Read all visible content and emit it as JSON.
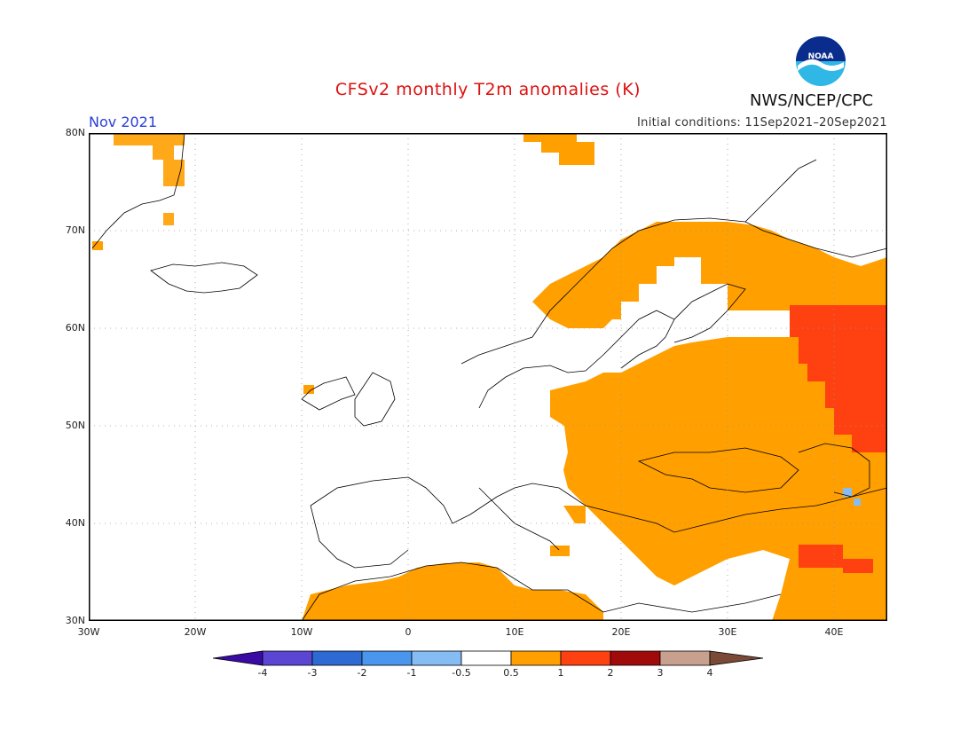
{
  "header": {
    "title": "CFSv2 monthly T2m anomalies (K)",
    "period": "Nov 2021",
    "initial_conditions": "Initial conditions: 11Sep2021–20Sep2021",
    "agency": "NWS/NCEP/CPC",
    "logo_text": "NOAA"
  },
  "map": {
    "lon_range": [
      -30,
      45
    ],
    "lat_range": [
      30,
      80
    ],
    "lat_labels": [
      "80N",
      "70N",
      "60N",
      "50N",
      "40N",
      "30N"
    ],
    "lon_labels": [
      "30W",
      "20W",
      "10W",
      "0",
      "10E",
      "20E",
      "30E",
      "40E"
    ],
    "grid": "dotted every 10 degrees",
    "anomaly_regions": [
      {
        "category": "0.5 to 1",
        "areas": [
          "Scandinavia",
          "Eastern Europe",
          "Western Russia",
          "Balkans",
          "Turkey",
          "North Africa",
          "Greenland coast",
          "Svalbard"
        ]
      },
      {
        "category": "1 to 2",
        "areas": [
          "Central Russia",
          "Middle East near Syria"
        ]
      },
      {
        "category": "-1 to -0.5",
        "areas": [
          "Caucasus"
        ]
      }
    ]
  },
  "colorbar": {
    "labels": [
      "-4",
      "-3",
      "-2",
      "-1",
      "-0.5",
      "0.5",
      "1",
      "2",
      "3",
      "4"
    ],
    "colors": [
      "#3a0aa5",
      "#5a46d2",
      "#2e6ad4",
      "#4a96ee",
      "#86bcf4",
      "#ffffff",
      "#ff9f00",
      "#ff4010",
      "#a10a0a",
      "#c8a08e",
      "#7a4a36"
    ]
  },
  "colors": {
    "title": "#dd1111",
    "period": "#2a3fd8",
    "positive_weak": "#ff9f00",
    "positive_mid": "#ff4010",
    "negative_weak": "#86bcf4"
  }
}
